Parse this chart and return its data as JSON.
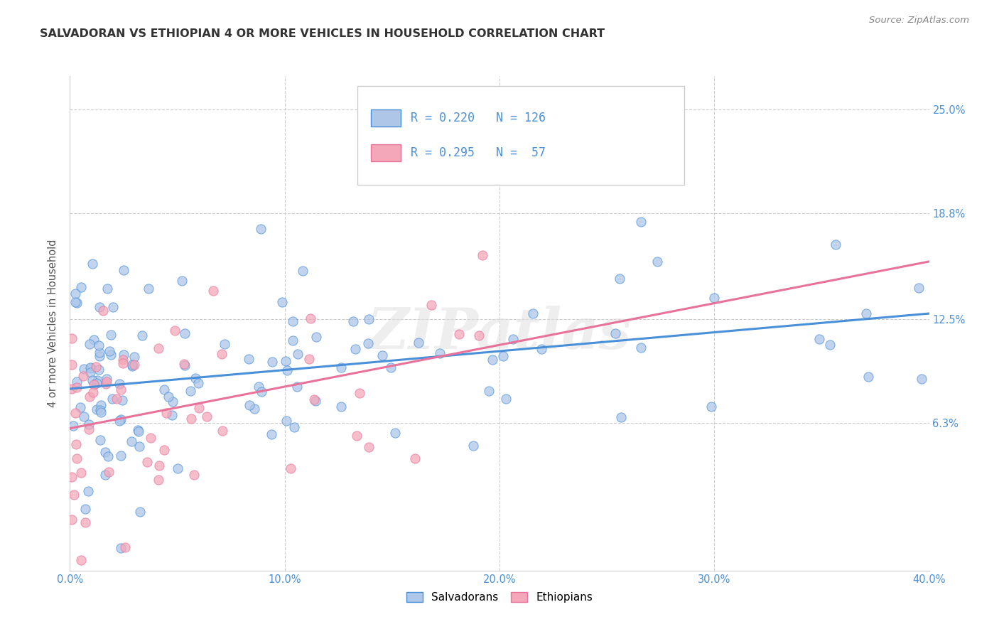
{
  "title": "SALVADORAN VS ETHIOPIAN 4 OR MORE VEHICLES IN HOUSEHOLD CORRELATION CHART",
  "source": "Source: ZipAtlas.com",
  "ylabel": "4 or more Vehicles in Household",
  "ytick_labels": [
    "6.3%",
    "12.5%",
    "18.8%",
    "25.0%"
  ],
  "ytick_values": [
    0.063,
    0.125,
    0.188,
    0.25
  ],
  "xlim": [
    0.0,
    0.4
  ],
  "ylim": [
    -0.025,
    0.27
  ],
  "watermark": "ZIPatlas",
  "legend_salvadoran_R": "0.220",
  "legend_salvadoran_N": "126",
  "legend_ethiopian_R": "0.295",
  "legend_ethiopian_N": "57",
  "salvadoran_color": "#aec6e8",
  "ethiopian_color": "#f4a7b9",
  "salvadoran_line_color": "#4a90d9",
  "ethiopian_line_color": "#e8729a",
  "title_color": "#333333",
  "axis_label_color": "#4a90d9",
  "tick_color": "#4a90d9",
  "background_color": "#ffffff",
  "grid_color": "#cccccc"
}
